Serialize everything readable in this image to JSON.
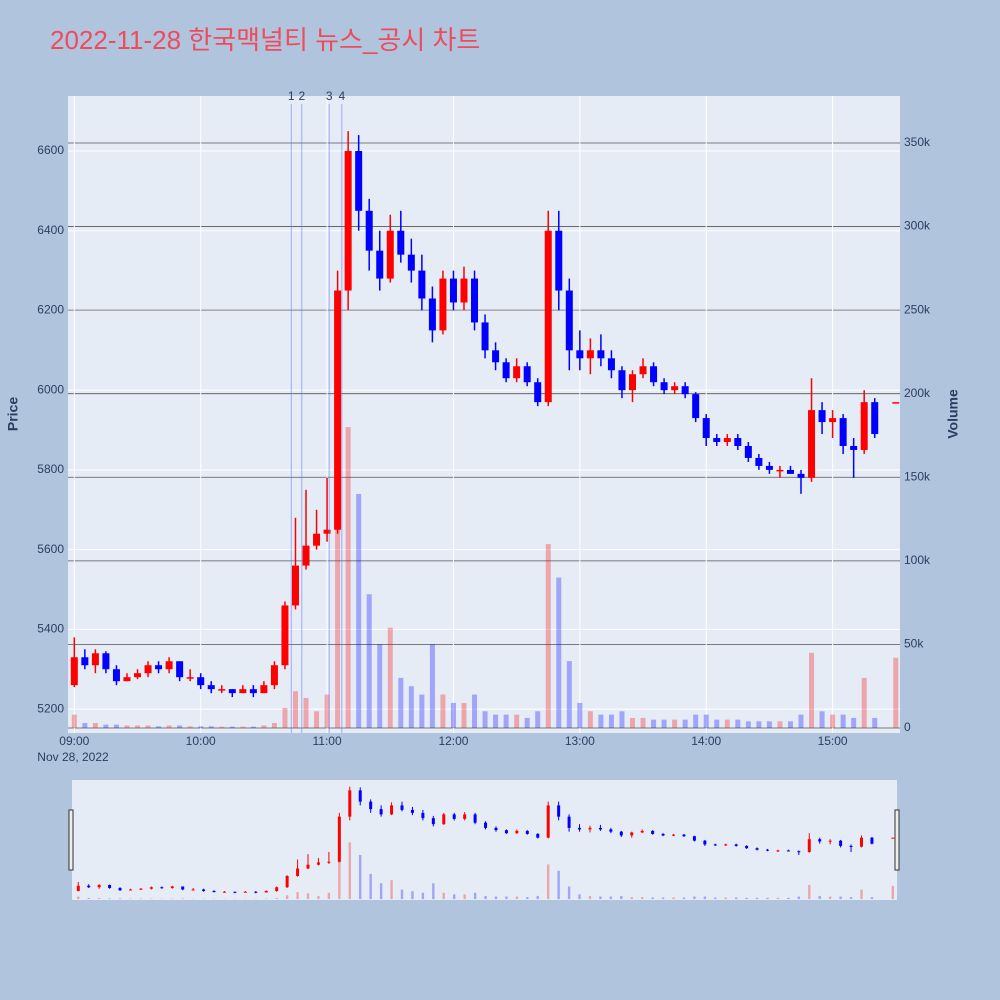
{
  "chart_data": {
    "type": "candlestick",
    "title": "2022-11-28 한국맥널티 뉴스_공시 차트",
    "x": [
      "09:00",
      "09:05",
      "09:10",
      "09:15",
      "09:20",
      "09:25",
      "09:30",
      "09:35",
      "09:40",
      "09:45",
      "09:50",
      "09:55",
      "10:00",
      "10:05",
      "10:10",
      "10:15",
      "10:20",
      "10:25",
      "10:30",
      "10:35",
      "10:40",
      "10:45",
      "10:50",
      "10:55",
      "11:00",
      "11:05",
      "11:10",
      "11:15",
      "11:20",
      "11:25",
      "11:30",
      "11:35",
      "11:40",
      "11:45",
      "11:50",
      "11:55",
      "12:00",
      "12:05",
      "12:10",
      "12:15",
      "12:20",
      "12:25",
      "12:30",
      "12:35",
      "12:40",
      "12:45",
      "12:50",
      "12:55",
      "13:00",
      "13:05",
      "13:10",
      "13:15",
      "13:20",
      "13:25",
      "13:30",
      "13:35",
      "13:40",
      "13:45",
      "13:50",
      "13:55",
      "14:00",
      "14:05",
      "14:10",
      "14:15",
      "14:20",
      "14:25",
      "14:30",
      "14:35",
      "14:40",
      "14:45",
      "14:50",
      "14:55",
      "15:00",
      "15:05",
      "15:10",
      "15:15",
      "15:20",
      "15:30"
    ],
    "open": [
      5260,
      5330,
      5310,
      5340,
      5300,
      5270,
      5280,
      5290,
      5310,
      5300,
      5320,
      5280,
      5280,
      5260,
      5250,
      5250,
      5240,
      5250,
      5240,
      5260,
      5310,
      5460,
      5560,
      5610,
      5640,
      5650,
      6250,
      6600,
      6450,
      6350,
      6280,
      6400,
      6340,
      6300,
      6230,
      6150,
      6280,
      6220,
      6280,
      6170,
      6100,
      6070,
      6030,
      6060,
      6020,
      5970,
      6400,
      6250,
      6100,
      6080,
      6100,
      6080,
      6050,
      6000,
      6040,
      6060,
      6020,
      6000,
      6010,
      5990,
      5930,
      5880,
      5870,
      5880,
      5860,
      5830,
      5810,
      5800,
      5800,
      5790,
      5780,
      5950,
      5920,
      5930,
      5860,
      5850,
      5970,
      5970
    ],
    "high": [
      5380,
      5350,
      5350,
      5345,
      5310,
      5290,
      5300,
      5320,
      5320,
      5330,
      5320,
      5300,
      5290,
      5270,
      5260,
      5250,
      5260,
      5260,
      5270,
      5320,
      5470,
      5680,
      5750,
      5700,
      5780,
      6300,
      6650,
      6640,
      6480,
      6400,
      6440,
      6450,
      6380,
      6340,
      6260,
      6300,
      6300,
      6310,
      6300,
      6190,
      6120,
      6080,
      6080,
      6070,
      6030,
      6450,
      6450,
      6280,
      6150,
      6130,
      6140,
      6100,
      6060,
      6050,
      6080,
      6070,
      6030,
      6020,
      6020,
      5995,
      5940,
      5890,
      5890,
      5890,
      5870,
      5840,
      5820,
      5810,
      5810,
      5800,
      6030,
      5970,
      5950,
      5940,
      5880,
      6000,
      5980,
      5970
    ],
    "low": [
      5255,
      5300,
      5290,
      5290,
      5260,
      5270,
      5275,
      5280,
      5290,
      5290,
      5270,
      5270,
      5250,
      5240,
      5240,
      5230,
      5240,
      5230,
      5240,
      5250,
      5300,
      5450,
      5550,
      5600,
      5620,
      5640,
      6200,
      6400,
      6300,
      6250,
      6270,
      6320,
      6270,
      6200,
      6120,
      6140,
      6200,
      6200,
      6150,
      6080,
      6050,
      6020,
      6020,
      6010,
      5960,
      5960,
      6200,
      6050,
      6050,
      6040,
      6060,
      6030,
      5980,
      5970,
      6030,
      6010,
      5990,
      5990,
      5980,
      5920,
      5860,
      5860,
      5860,
      5850,
      5820,
      5800,
      5790,
      5780,
      5790,
      5740,
      5770,
      5890,
      5880,
      5840,
      5780,
      5840,
      5880,
      5970
    ],
    "close": [
      5330,
      5310,
      5340,
      5300,
      5270,
      5280,
      5290,
      5310,
      5300,
      5320,
      5280,
      5280,
      5260,
      5250,
      5250,
      5240,
      5250,
      5240,
      5260,
      5310,
      5460,
      5560,
      5610,
      5640,
      5650,
      6250,
      6600,
      6450,
      6350,
      6280,
      6400,
      6340,
      6300,
      6230,
      6150,
      6280,
      6220,
      6280,
      6170,
      6100,
      6070,
      6030,
      6060,
      6020,
      5970,
      6400,
      6250,
      6100,
      6080,
      6100,
      6080,
      6050,
      6000,
      6040,
      6060,
      6020,
      6000,
      6010,
      5990,
      5930,
      5880,
      5870,
      5880,
      5860,
      5830,
      5810,
      5800,
      5800,
      5790,
      5780,
      5950,
      5920,
      5930,
      5860,
      5850,
      5970,
      5890,
      5970
    ],
    "volume": [
      8000,
      3000,
      3000,
      2000,
      2000,
      1500,
      1500,
      1500,
      1000,
      1500,
      1500,
      1000,
      1000,
      1000,
      800,
      800,
      800,
      800,
      1500,
      3000,
      12000,
      22000,
      18000,
      10000,
      20000,
      250000,
      180000,
      140000,
      80000,
      50000,
      60000,
      30000,
      25000,
      20000,
      50000,
      20000,
      15000,
      15000,
      20000,
      10000,
      8000,
      8000,
      8000,
      6000,
      10000,
      110000,
      90000,
      40000,
      15000,
      10000,
      8000,
      8000,
      10000,
      6000,
      6000,
      5000,
      5000,
      5000,
      5000,
      8000,
      8000,
      5000,
      5000,
      5000,
      4000,
      4000,
      4000,
      4000,
      4000,
      8000,
      45000,
      10000,
      8000,
      8000,
      6000,
      30000,
      6000,
      42000
    ],
    "increasing_color": "#ff0000",
    "decreasing_color": "#0000ff",
    "xlim": [
      "08:57",
      "15:32"
    ],
    "xticks": [
      "09:00",
      "10:00",
      "11:00",
      "12:00",
      "13:00",
      "14:00",
      "15:00"
    ],
    "x_sublabel": "Nov 28, 2022",
    "ylim": [
      5140,
      6738
    ],
    "yticks": [
      5200,
      5400,
      5600,
      5800,
      6000,
      6200,
      6400,
      6600
    ],
    "y2lim": [
      -3000,
      378100
    ],
    "y2ticks": [
      0,
      {
        "value": 50000,
        "label": "50k"
      },
      {
        "value": 100000,
        "label": "100k"
      },
      {
        "value": 150000,
        "label": "150k"
      },
      {
        "value": 200000,
        "label": "200k"
      },
      {
        "value": 250000,
        "label": "250k"
      },
      {
        "value": 300000,
        "label": "300k"
      },
      {
        "value": 350000,
        "label": "350k"
      }
    ],
    "ylabel": "Price",
    "y2label": "Volume",
    "annotations": [
      {
        "x": "10:43",
        "label": "1"
      },
      {
        "x": "10:48",
        "label": "2"
      },
      {
        "x": "11:01",
        "label": "3"
      },
      {
        "x": "11:07",
        "label": "4"
      }
    ],
    "rangeslider": true
  }
}
